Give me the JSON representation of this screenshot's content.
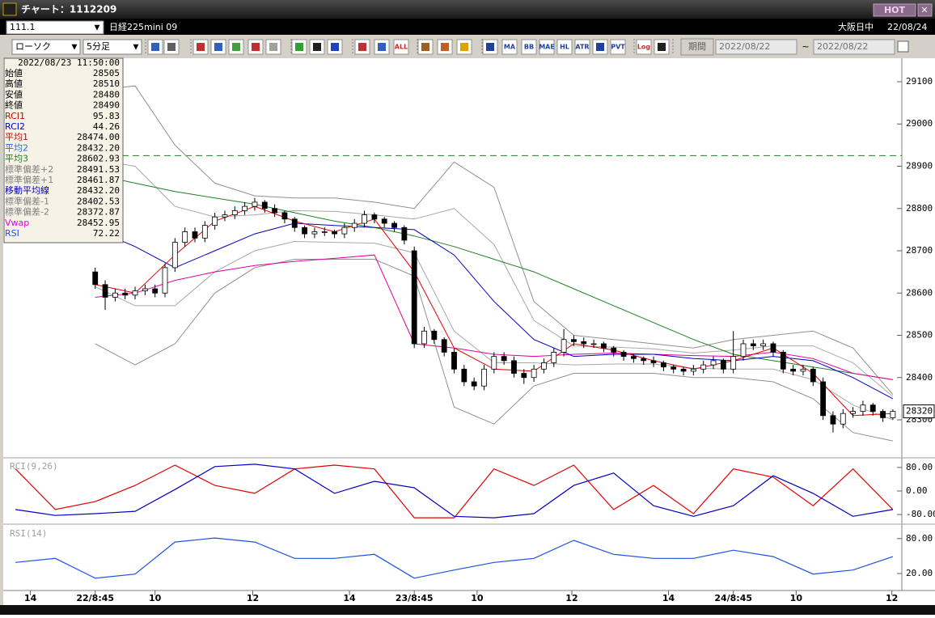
{
  "window": {
    "title": "チャート：1112209",
    "hot": "HOT"
  },
  "header": {
    "code": "111.1",
    "name": "日経225mini 09",
    "session": "大阪日中",
    "date": "22/08/24"
  },
  "toolbar": {
    "chart_style": "ローソク",
    "interval": "5分足",
    "icon_labels": [
      "ALL",
      "MA",
      "BB",
      "MAE",
      "HL",
      "ATR",
      "PVT",
      "Log"
    ],
    "period_button": "期間",
    "date_from": "2022/08/22",
    "tilde": "~",
    "date_to": "2022/08/22"
  },
  "info_panel": {
    "datetime": "2022/08/23 11:50:00",
    "rows": [
      {
        "label": "始値",
        "value": "28505",
        "color": "#000000"
      },
      {
        "label": "高値",
        "value": "28510",
        "color": "#000000"
      },
      {
        "label": "安値",
        "value": "28480",
        "color": "#000000"
      },
      {
        "label": "終値",
        "value": "28490",
        "color": "#000000"
      },
      {
        "label": "RCI1",
        "value": "95.83",
        "color": "#d00000"
      },
      {
        "label": "RCI2",
        "value": "44.26",
        "color": "#0000c0"
      },
      {
        "label": "平均1",
        "value": "28474.00",
        "color": "#e00000"
      },
      {
        "label": "平均2",
        "value": "28432.20",
        "color": "#2070d0"
      },
      {
        "label": "平均3",
        "value": "28602.93",
        "color": "#208020"
      },
      {
        "label": "標準偏差+2",
        "value": "28491.53",
        "color": "#808080"
      },
      {
        "label": "標準偏差+1",
        "value": "28461.87",
        "color": "#808080"
      },
      {
        "label": "移動平均線",
        "value": "28432.20",
        "color": "#0000c0"
      },
      {
        "label": "標準偏差-1",
        "value": "28402.53",
        "color": "#808080"
      },
      {
        "label": "標準偏差-2",
        "value": "28372.87",
        "color": "#808080"
      },
      {
        "label": "Vwap",
        "value": "28452.95",
        "color": "#e000e0"
      },
      {
        "label": "RSI",
        "value": "72.22",
        "color": "#2050e0"
      }
    ]
  },
  "chart_data": [
    {
      "type": "candlestick",
      "xlim": [
        -8.9,
        80.9
      ],
      "xticks": [
        {
          "value": -6.5,
          "label": "14"
        },
        {
          "value": 0,
          "label": "22/8:45"
        },
        {
          "value": 6,
          "label": "10"
        },
        {
          "value": 15.8,
          "label": "12"
        },
        {
          "value": 25.5,
          "label": "14"
        },
        {
          "value": 32,
          "label": "23/8:45"
        },
        {
          "value": 38.3,
          "label": "10"
        },
        {
          "value": 47.8,
          "label": "12"
        },
        {
          "value": 57.5,
          "label": "14"
        },
        {
          "value": 64,
          "label": "24/8:45"
        },
        {
          "value": 70.3,
          "label": "10"
        },
        {
          "value": 79.9,
          "label": "12"
        }
      ],
      "ylim": [
        28212,
        29144
      ],
      "yticks": [
        28300,
        28400,
        28500,
        28600,
        28700,
        28800,
        28900,
        29000,
        29100
      ],
      "candles": [
        [
          28650,
          28660,
          28610,
          28620
        ],
        [
          28620,
          28630,
          28560,
          28590
        ],
        [
          28590,
          28610,
          28580,
          28600
        ],
        [
          28600,
          28610,
          28585,
          28595
        ],
        [
          28595,
          28615,
          28585,
          28605
        ],
        [
          28605,
          28620,
          28595,
          28610
        ],
        [
          28610,
          28620,
          28590,
          28600
        ],
        [
          28600,
          28670,
          28590,
          28660
        ],
        [
          28660,
          28730,
          28650,
          28720
        ],
        [
          28720,
          28755,
          28710,
          28745
        ],
        [
          28745,
          28755,
          28720,
          28730
        ],
        [
          28730,
          28770,
          28720,
          28760
        ],
        [
          28760,
          28790,
          28750,
          28780
        ],
        [
          28780,
          28795,
          28770,
          28785
        ],
        [
          28785,
          28805,
          28775,
          28795
        ],
        [
          28795,
          28815,
          28785,
          28805
        ],
        [
          28805,
          28825,
          28795,
          28815
        ],
        [
          28815,
          28820,
          28790,
          28800
        ],
        [
          28800,
          28810,
          28780,
          28790
        ],
        [
          28790,
          28795,
          28765,
          28775
        ],
        [
          28775,
          28780,
          28745,
          28755
        ],
        [
          28755,
          28760,
          28730,
          28740
        ],
        [
          28740,
          28755,
          28730,
          28745
        ],
        [
          28745,
          28755,
          28735,
          28745
        ],
        [
          28745,
          28750,
          28730,
          28740
        ],
        [
          28740,
          28765,
          28730,
          28755
        ],
        [
          28755,
          28775,
          28745,
          28765
        ],
        [
          28765,
          28795,
          28755,
          28785
        ],
        [
          28785,
          28790,
          28765,
          28775
        ],
        [
          28775,
          28780,
          28755,
          28765
        ],
        [
          28765,
          28770,
          28745,
          28755
        ],
        [
          28755,
          28760,
          28715,
          28725
        ],
        [
          28700,
          28710,
          28470,
          28480
        ],
        [
          28480,
          28520,
          28470,
          28510
        ],
        [
          28510,
          28515,
          28480,
          28490
        ],
        [
          28490,
          28495,
          28450,
          28460
        ],
        [
          28460,
          28470,
          28410,
          28420
        ],
        [
          28420,
          28430,
          28380,
          28390
        ],
        [
          28390,
          28400,
          28370,
          28380
        ],
        [
          28380,
          28430,
          28370,
          28420
        ],
        [
          28420,
          28460,
          28410,
          28450
        ],
        [
          28450,
          28460,
          28430,
          28440
        ],
        [
          28440,
          28450,
          28400,
          28410
        ],
        [
          28410,
          28420,
          28385,
          28400
        ],
        [
          28400,
          28430,
          28390,
          28420
        ],
        [
          28420,
          28445,
          28410,
          28435
        ],
        [
          28435,
          28470,
          28425,
          28460
        ],
        [
          28460,
          28515,
          28450,
          28490
        ],
        [
          28490,
          28500,
          28475,
          28485
        ],
        [
          28485,
          28495,
          28470,
          28480
        ],
        [
          28480,
          28490,
          28470,
          28480
        ],
        [
          28480,
          28485,
          28460,
          28470
        ],
        [
          28470,
          28475,
          28450,
          28460
        ],
        [
          28460,
          28465,
          28440,
          28450
        ],
        [
          28450,
          28455,
          28435,
          28445
        ],
        [
          28445,
          28450,
          28430,
          28440
        ],
        [
          28440,
          28450,
          28425,
          28435
        ],
        [
          28435,
          28440,
          28415,
          28425
        ],
        [
          28425,
          28430,
          28410,
          28420
        ],
        [
          28420,
          28425,
          28405,
          28415
        ],
        [
          28415,
          28430,
          28405,
          28420
        ],
        [
          28420,
          28440,
          28410,
          28430
        ],
        [
          28430,
          28450,
          28420,
          28440
        ],
        [
          28440,
          28445,
          28410,
          28420
        ],
        [
          28420,
          28510,
          28410,
          28450
        ],
        [
          28450,
          28490,
          28440,
          28480
        ],
        [
          28480,
          28490,
          28465,
          28475
        ],
        [
          28475,
          28490,
          28465,
          28480
        ],
        [
          28480,
          28485,
          28450,
          28460
        ],
        [
          28460,
          28465,
          28410,
          28420
        ],
        [
          28420,
          28430,
          28405,
          28415
        ],
        [
          28415,
          28430,
          28405,
          28420
        ],
        [
          28420,
          28425,
          28380,
          28390
        ],
        [
          28390,
          28400,
          28300,
          28310
        ],
        [
          28310,
          28320,
          28270,
          28290
        ],
        [
          28290,
          28325,
          28280,
          28315
        ],
        [
          28315,
          28330,
          28305,
          28320
        ],
        [
          28320,
          28345,
          28310,
          28335
        ],
        [
          28335,
          28340,
          28310,
          28320
        ],
        [
          28320,
          28325,
          28295,
          28305
        ],
        [
          28305,
          28325,
          28300,
          28320
        ]
      ],
      "line_x": [
        0,
        4,
        8,
        12,
        16,
        20,
        24,
        28,
        32,
        36,
        40,
        44,
        48,
        52,
        56,
        60,
        64,
        68,
        72,
        76,
        80
      ],
      "series": [
        {
          "color": "#909090",
          "values": [
            29080,
            29090,
            28950,
            28860,
            28830,
            28825,
            28825,
            28815,
            28800,
            28910,
            28850,
            28580,
            28500,
            28490,
            28480,
            28470,
            28490,
            28500,
            28510,
            28470,
            28360
          ]
        },
        {
          "color": "#a8a8a8",
          "values": [
            28915,
            28900,
            28805,
            28780,
            28785,
            28795,
            28793,
            28785,
            28775,
            28800,
            28715,
            28535,
            28475,
            28472,
            28468,
            28458,
            28465,
            28475,
            28475,
            28435,
            28355
          ]
        },
        {
          "color": "#a8a8a8",
          "values": [
            28615,
            28570,
            28570,
            28650,
            28700,
            28722,
            28720,
            28718,
            28695,
            28510,
            28435,
            28435,
            28430,
            28432,
            28432,
            28422,
            28420,
            28420,
            28395,
            28335,
            28300
          ]
        },
        {
          "color": "#909090",
          "values": [
            28480,
            28430,
            28480,
            28600,
            28660,
            28680,
            28680,
            28680,
            28640,
            28330,
            28290,
            28380,
            28410,
            28410,
            28410,
            28400,
            28400,
            28390,
            28350,
            28270,
            28250
          ]
        },
        {
          "color": "#208020",
          "values": [
            28880,
            28860,
            28840,
            28825,
            28810,
            28790,
            28770,
            28755,
            28735,
            28710,
            28680,
            28650,
            28610,
            28570,
            28530,
            28490,
            28455,
            28440,
            28425,
            28410,
            28395
          ]
        },
        {
          "color": "#e000a0",
          "values": [
            28590,
            28600,
            28630,
            28650,
            28665,
            28675,
            28682,
            28690,
            28480,
            28470,
            28455,
            28450,
            28455,
            28458,
            28455,
            28452,
            28450,
            28460,
            28445,
            28410,
            28395
          ]
        },
        {
          "color": "#0000c0",
          "values": [
            28750,
            28710,
            28660,
            28700,
            28740,
            28765,
            28760,
            28755,
            28750,
            28690,
            28580,
            28490,
            28450,
            28455,
            28455,
            28445,
            28440,
            28450,
            28440,
            28400,
            28350
          ]
        },
        {
          "color": "#e00000",
          "values": [
            28620,
            28600,
            28690,
            28770,
            28805,
            28770,
            28745,
            28775,
            28650,
            28470,
            28420,
            28415,
            28480,
            28465,
            28440,
            28420,
            28440,
            28470,
            28410,
            28310,
            28315
          ]
        }
      ],
      "hline": {
        "value": 28925,
        "color": "#208020"
      },
      "last_price": 28320
    },
    {
      "type": "line",
      "title": "RCI(9,26)",
      "xlim": [
        -8.9,
        80.9
      ],
      "x": [
        -8,
        -4,
        0,
        4,
        8,
        12,
        16,
        20,
        24,
        28,
        32,
        36,
        40,
        44,
        48,
        52,
        56,
        60,
        64,
        68,
        72,
        76,
        80
      ],
      "ylim": [
        -110,
        110
      ],
      "yticks": [
        {
          "value": 80,
          "label": "80.00"
        },
        {
          "value": 0,
          "label": "0.00"
        },
        {
          "value": -80,
          "label": "-80.00"
        }
      ],
      "series": [
        {
          "color": "#e00000",
          "values": [
            75,
            -63,
            -36,
            19,
            88,
            19,
            -8,
            75,
            88,
            75,
            -91,
            -91,
            75,
            19,
            88,
            -63,
            19,
            -77,
            75,
            47,
            -50,
            75,
            -63
          ]
        },
        {
          "color": "#0000c0",
          "values": [
            -63,
            -83,
            -77,
            -69,
            5,
            83,
            91,
            75,
            -8,
            33,
            11,
            -86,
            -91,
            -77,
            19,
            61,
            -50,
            -86,
            -50,
            52,
            -8,
            -86,
            -63
          ]
        }
      ]
    },
    {
      "type": "line",
      "title": "RSI(14)",
      "xlim": [
        -8.9,
        80.9
      ],
      "x": [
        -8,
        -4,
        0,
        4,
        8,
        12,
        16,
        20,
        24,
        28,
        32,
        36,
        40,
        44,
        48,
        52,
        56,
        60,
        64,
        68,
        72,
        76,
        80
      ],
      "ylim": [
        -5,
        102
      ],
      "yticks": [
        {
          "value": 80,
          "label": "80.00"
        },
        {
          "value": 20,
          "label": "20.00"
        }
      ],
      "series": [
        {
          "color": "#2050e0",
          "values": [
            39,
            46,
            12,
            19,
            74,
            81,
            74,
            46,
            46,
            53,
            12,
            26,
            39,
            46,
            77,
            53,
            46,
            46,
            60,
            49,
            19,
            26,
            49
          ]
        }
      ]
    }
  ]
}
